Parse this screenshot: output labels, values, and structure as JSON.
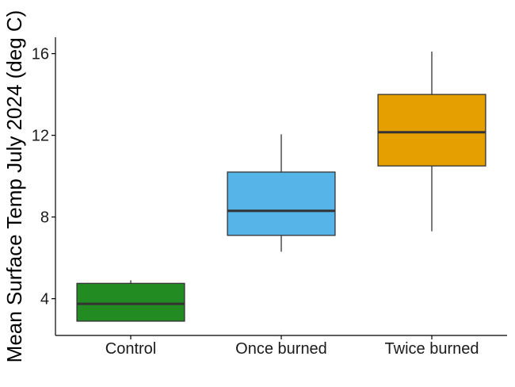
{
  "chart_data": {
    "type": "boxplot",
    "title": "",
    "xlabel": "",
    "ylabel": "Mean Surface Temp July 2024 (deg C)",
    "ylim": [
      2.2,
      16.8
    ],
    "yticks": [
      4,
      8,
      12,
      16
    ],
    "grid": false,
    "categories": [
      "Control",
      "Once burned",
      "Twice burned"
    ],
    "boxes": [
      {
        "category": "Control",
        "whisker_low": 2.9,
        "q1": 2.9,
        "median": 3.75,
        "q3": 4.75,
        "whisker_high": 4.9,
        "color": "#228B22"
      },
      {
        "category": "Once burned",
        "whisker_low": 6.3,
        "q1": 7.1,
        "median": 8.3,
        "q3": 10.2,
        "whisker_high": 12.05,
        "color": "#56B4E9"
      },
      {
        "category": "Twice burned",
        "whisker_low": 7.3,
        "q1": 10.5,
        "median": 12.15,
        "q3": 14.0,
        "whisker_high": 16.1,
        "color": "#E69F00"
      }
    ]
  }
}
